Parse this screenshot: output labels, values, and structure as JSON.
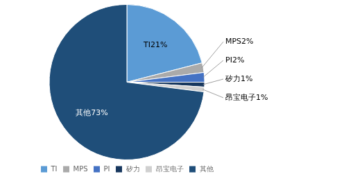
{
  "chart_data": {
    "type": "pie",
    "categories": [
      "TI",
      "MPS",
      "PI",
      "矽力",
      "昂宝电子",
      "其他"
    ],
    "values": [
      21,
      2,
      2,
      1,
      1,
      73
    ],
    "colors": [
      "#5b9bd5",
      "#aaaaaa",
      "#4472c4",
      "#17375e",
      "#d0d0d0",
      "#1f4e79"
    ],
    "data_labels": true,
    "value_labels": [
      "TI21%",
      "MPS2%",
      "PI2%",
      "矽力1%",
      "昂宝电子1%",
      "其他73%"
    ],
    "legend": "bottom"
  }
}
